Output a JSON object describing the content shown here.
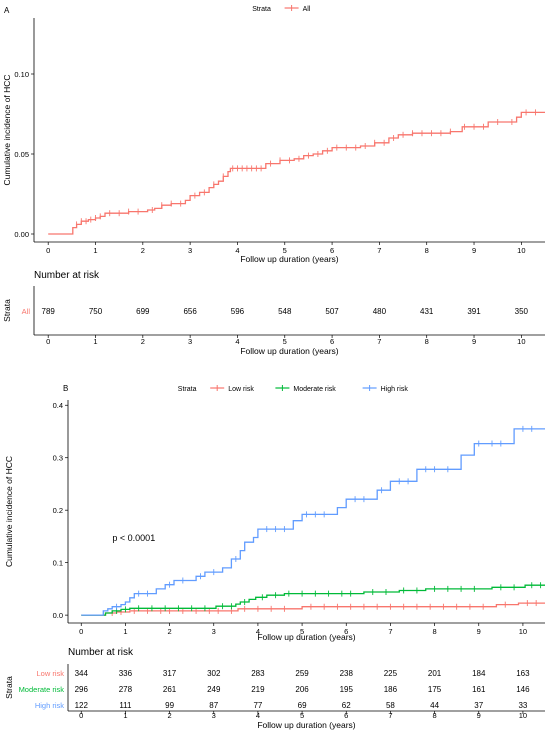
{
  "chart_data": [
    {
      "panel_label": "A",
      "type": "line",
      "step": true,
      "legend": {
        "title": "Strata",
        "position": "top",
        "entries": [
          "All"
        ]
      },
      "xlabel": "Follow up duration (years)",
      "ylabel": "Cumulative incidence of HCC",
      "xlim": [
        -0.3,
        10.5
      ],
      "ylim": [
        -0.005,
        0.135
      ],
      "x_ticks": [
        0,
        1,
        2,
        3,
        4,
        5,
        6,
        7,
        8,
        9,
        10
      ],
      "y_ticks": [
        0.0,
        0.05,
        0.1
      ],
      "y_tick_labels": [
        "0.00",
        "0.05",
        "0.10"
      ],
      "grid": false,
      "series": [
        {
          "name": "All",
          "color": "#F8766D",
          "points": [
            [
              0,
              0
            ],
            [
              0.5,
              0
            ],
            [
              0.52,
              0.004
            ],
            [
              0.6,
              0.006
            ],
            [
              0.7,
              0.008
            ],
            [
              0.85,
              0.009
            ],
            [
              1.0,
              0.01
            ],
            [
              1.1,
              0.011
            ],
            [
              1.2,
              0.013
            ],
            [
              1.5,
              0.013
            ],
            [
              1.7,
              0.014
            ],
            [
              2.1,
              0.015
            ],
            [
              2.25,
              0.016
            ],
            [
              2.4,
              0.018
            ],
            [
              2.6,
              0.019
            ],
            [
              2.9,
              0.021
            ],
            [
              3.0,
              0.024
            ],
            [
              3.2,
              0.026
            ],
            [
              3.4,
              0.029
            ],
            [
              3.5,
              0.031
            ],
            [
              3.6,
              0.033
            ],
            [
              3.7,
              0.036
            ],
            [
              3.8,
              0.039
            ],
            [
              3.85,
              0.041
            ],
            [
              4.5,
              0.041
            ],
            [
              4.6,
              0.044
            ],
            [
              4.9,
              0.046
            ],
            [
              5.2,
              0.047
            ],
            [
              5.4,
              0.049
            ],
            [
              5.6,
              0.05
            ],
            [
              5.8,
              0.052
            ],
            [
              6.0,
              0.054
            ],
            [
              6.6,
              0.055
            ],
            [
              6.9,
              0.057
            ],
            [
              7.2,
              0.06
            ],
            [
              7.4,
              0.062
            ],
            [
              7.7,
              0.063
            ],
            [
              8.5,
              0.064
            ],
            [
              8.75,
              0.067
            ],
            [
              9.3,
              0.07
            ],
            [
              9.9,
              0.073
            ],
            [
              10.0,
              0.076
            ],
            [
              10.5,
              0.076
            ]
          ],
          "censor_x": [
            0.6,
            0.7,
            0.8,
            0.9,
            1.0,
            1.1,
            1.3,
            1.5,
            1.7,
            1.9,
            2.2,
            2.4,
            2.6,
            2.8,
            3.1,
            3.3,
            3.5,
            3.7,
            3.9,
            4.0,
            4.1,
            4.2,
            4.3,
            4.4,
            4.5,
            4.7,
            4.9,
            5.1,
            5.3,
            5.5,
            5.7,
            5.9,
            6.1,
            6.3,
            6.5,
            6.7,
            6.9,
            7.1,
            7.3,
            7.5,
            7.7,
            7.9,
            8.1,
            8.3,
            8.5,
            8.8,
            9.0,
            9.2,
            9.5,
            9.8,
            10.1,
            10.3
          ]
        }
      ],
      "risk_table": {
        "title": "Number at risk",
        "y_axis_title": "Strata",
        "rows": [
          {
            "label": "All",
            "color": "#F8766D",
            "counts": [
              789,
              750,
              699,
              656,
              596,
              548,
              507,
              480,
              431,
              391,
              350
            ]
          }
        ]
      }
    },
    {
      "panel_label": "B",
      "type": "line",
      "step": true,
      "legend": {
        "title": "Strata",
        "position": "top",
        "entries": [
          "Low risk",
          "Moderate risk",
          "High risk"
        ]
      },
      "xlabel": "Follow up duration (years)",
      "ylabel": "Cumulative incidence of HCC",
      "xlim": [
        -0.3,
        10.5
      ],
      "ylim": [
        -0.015,
        0.41
      ],
      "x_ticks": [
        0,
        1,
        2,
        3,
        4,
        5,
        6,
        7,
        8,
        9,
        10
      ],
      "y_ticks": [
        0.0,
        0.1,
        0.2,
        0.3,
        0.4
      ],
      "y_tick_labels": [
        "0.0",
        "0.1",
        "0.2",
        "0.3",
        "0.4"
      ],
      "grid": false,
      "annotation": "p < 0.0001",
      "series": [
        {
          "name": "Low risk",
          "color": "#F8766D",
          "points": [
            [
              0,
              0
            ],
            [
              0.5,
              0
            ],
            [
              0.55,
              0.004
            ],
            [
              0.8,
              0.006
            ],
            [
              1.1,
              0.008
            ],
            [
              3.5,
              0.008
            ],
            [
              3.55,
              0.012
            ],
            [
              4.9,
              0.012
            ],
            [
              5.0,
              0.016
            ],
            [
              9.2,
              0.016
            ],
            [
              9.4,
              0.02
            ],
            [
              9.9,
              0.023
            ],
            [
              10.5,
              0.023
            ]
          ],
          "censor_x": [
            0.7,
            0.9,
            1.2,
            1.5,
            1.8,
            2.0,
            2.3,
            2.6,
            2.9,
            3.1,
            3.4,
            3.7,
            4.0,
            4.3,
            4.6,
            5.2,
            5.5,
            5.8,
            6.1,
            6.4,
            6.7,
            7.0,
            7.3,
            7.6,
            7.9,
            8.2,
            8.5,
            8.8,
            9.1,
            9.6,
            10.1,
            10.3
          ]
        },
        {
          "name": "Moderate risk",
          "color": "#00BA38",
          "points": [
            [
              0,
              0
            ],
            [
              0.5,
              0
            ],
            [
              0.55,
              0.004
            ],
            [
              0.7,
              0.008
            ],
            [
              0.9,
              0.011
            ],
            [
              1.1,
              0.013
            ],
            [
              3.0,
              0.013
            ],
            [
              3.05,
              0.017
            ],
            [
              3.5,
              0.021
            ],
            [
              3.6,
              0.025
            ],
            [
              3.8,
              0.03
            ],
            [
              3.95,
              0.034
            ],
            [
              4.2,
              0.038
            ],
            [
              4.5,
              0.038
            ],
            [
              4.6,
              0.041
            ],
            [
              6.2,
              0.041
            ],
            [
              6.4,
              0.044
            ],
            [
              7.0,
              0.044
            ],
            [
              7.2,
              0.047
            ],
            [
              7.7,
              0.047
            ],
            [
              7.8,
              0.05
            ],
            [
              9.2,
              0.05
            ],
            [
              9.3,
              0.053
            ],
            [
              10.0,
              0.053
            ],
            [
              10.05,
              0.057
            ],
            [
              10.5,
              0.057
            ]
          ],
          "censor_x": [
            0.8,
            1.0,
            1.3,
            1.6,
            1.9,
            2.2,
            2.5,
            2.8,
            3.2,
            3.4,
            3.7,
            4.1,
            4.4,
            4.7,
            5.0,
            5.3,
            5.6,
            5.9,
            6.1,
            6.6,
            6.9,
            7.3,
            7.6,
            8.0,
            8.3,
            8.6,
            8.9,
            9.5,
            9.8,
            10.2,
            10.4
          ]
        },
        {
          "name": "High risk",
          "color": "#619CFF",
          "points": [
            [
              0,
              0
            ],
            [
              0.45,
              0
            ],
            [
              0.5,
              0.008
            ],
            [
              0.6,
              0.012
            ],
            [
              0.7,
              0.016
            ],
            [
              0.9,
              0.02
            ],
            [
              1.0,
              0.025
            ],
            [
              1.1,
              0.033
            ],
            [
              1.2,
              0.041
            ],
            [
              1.6,
              0.041
            ],
            [
              1.7,
              0.05
            ],
            [
              1.9,
              0.058
            ],
            [
              2.1,
              0.066
            ],
            [
              2.5,
              0.066
            ],
            [
              2.6,
              0.074
            ],
            [
              2.8,
              0.082
            ],
            [
              3.1,
              0.082
            ],
            [
              3.2,
              0.09
            ],
            [
              3.4,
              0.107
            ],
            [
              3.6,
              0.123
            ],
            [
              3.7,
              0.139
            ],
            [
              3.9,
              0.148
            ],
            [
              4.0,
              0.164
            ],
            [
              4.7,
              0.164
            ],
            [
              4.8,
              0.18
            ],
            [
              5.0,
              0.192
            ],
            [
              5.7,
              0.192
            ],
            [
              5.8,
              0.205
            ],
            [
              6.0,
              0.221
            ],
            [
              6.6,
              0.221
            ],
            [
              6.7,
              0.238
            ],
            [
              7.0,
              0.255
            ],
            [
              7.5,
              0.255
            ],
            [
              7.6,
              0.278
            ],
            [
              8.5,
              0.278
            ],
            [
              8.6,
              0.305
            ],
            [
              8.9,
              0.327
            ],
            [
              9.7,
              0.327
            ],
            [
              9.8,
              0.355
            ],
            [
              10.5,
              0.355
            ]
          ],
          "censor_x": [
            0.8,
            1.3,
            1.5,
            2.0,
            2.3,
            2.7,
            3.0,
            3.5,
            4.2,
            4.4,
            4.6,
            5.1,
            5.3,
            5.5,
            6.2,
            6.4,
            6.8,
            7.2,
            7.4,
            7.8,
            8.0,
            8.3,
            9.0,
            9.3,
            9.5,
            10.0,
            10.2
          ]
        }
      ],
      "risk_table": {
        "title": "Number at risk",
        "y_axis_title": "Strata",
        "rows": [
          {
            "label": "Low risk",
            "color": "#F8766D",
            "counts": [
              344,
              336,
              317,
              302,
              283,
              259,
              238,
              225,
              201,
              184,
              163
            ]
          },
          {
            "label": "Moderate risk",
            "color": "#00BA38",
            "counts": [
              296,
              278,
              261,
              249,
              219,
              206,
              195,
              186,
              175,
              161,
              146
            ]
          },
          {
            "label": "High risk",
            "color": "#619CFF",
            "counts": [
              122,
              111,
              99,
              87,
              77,
              69,
              62,
              58,
              44,
              37,
              33
            ]
          }
        ]
      }
    }
  ]
}
